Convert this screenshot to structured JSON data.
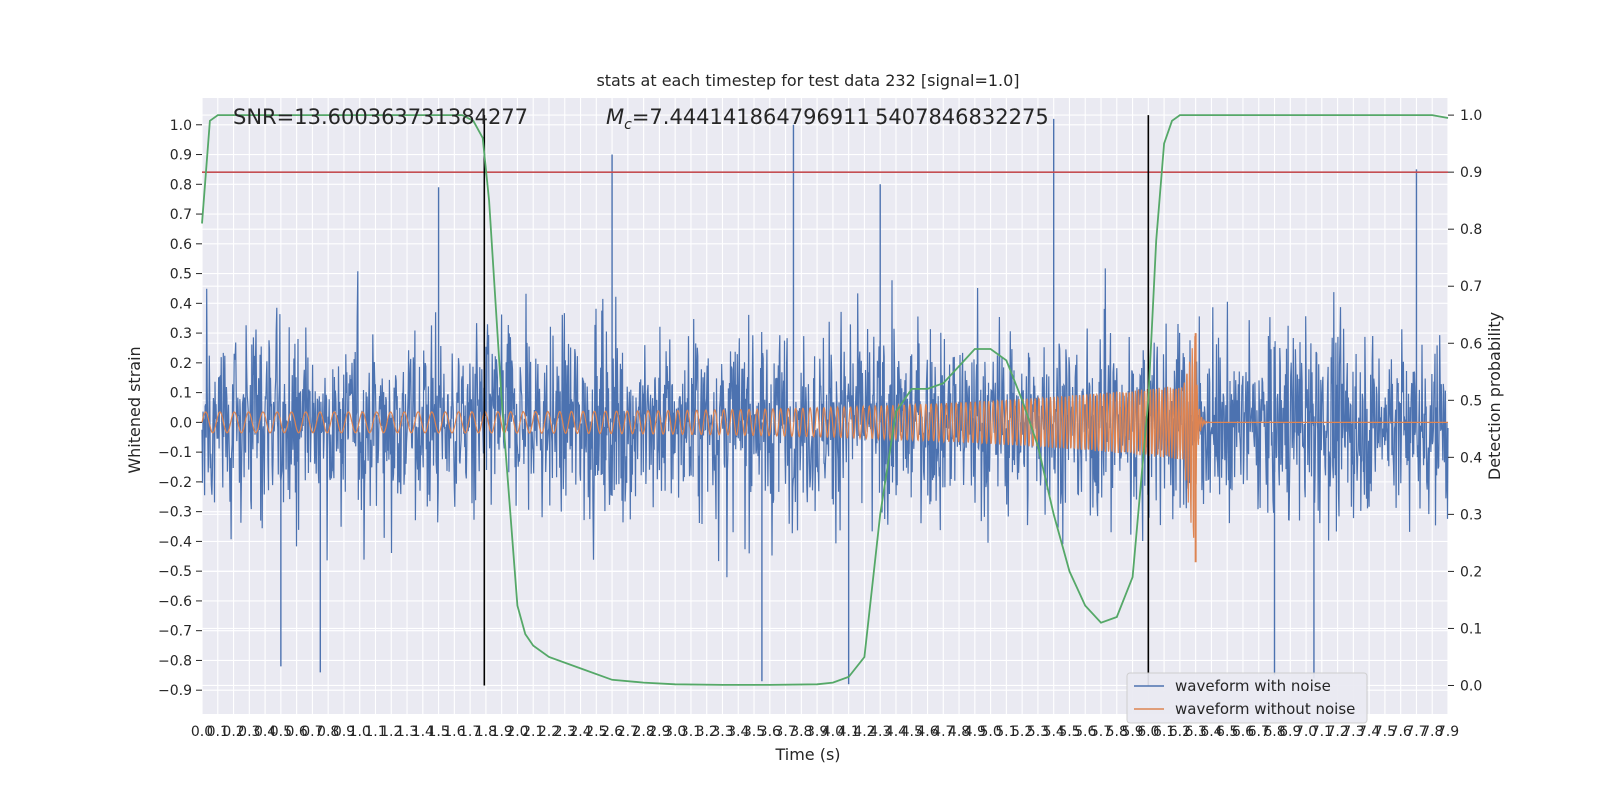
{
  "chart_data": {
    "type": "line",
    "title": "stats at each timestep for test data 232 [signal=1.0]",
    "xlabel": "Time (s)",
    "ylabel_left": "Whitened strain",
    "ylabel_right": "Detection probability",
    "xlim": [
      0.0,
      7.9
    ],
    "ylim_left": [
      -0.98,
      1.09
    ],
    "ylim_right": [
      -0.05,
      1.03
    ],
    "x_ticks": [
      "0.0",
      "0.1",
      "0.2",
      "0.3",
      "0.4",
      "0.5",
      "0.6",
      "0.7",
      "0.8",
      "0.9",
      "1.0",
      "1.1",
      "1.2",
      "1.3",
      "1.4",
      "1.5",
      "1.6",
      "1.7",
      "1.8",
      "1.9",
      "2.0",
      "2.1",
      "2.2",
      "2.3",
      "2.4",
      "2.5",
      "2.6",
      "2.7",
      "2.8",
      "2.9",
      "3.0",
      "3.1",
      "3.2",
      "3.3",
      "3.4",
      "3.5",
      "3.6",
      "3.7",
      "3.8",
      "3.9",
      "4.0",
      "4.1",
      "4.2",
      "4.3",
      "4.4",
      "4.5",
      "4.6",
      "4.7",
      "4.8",
      "4.9",
      "5.0",
      "5.1",
      "5.2",
      "5.3",
      "5.4",
      "5.5",
      "5.6",
      "5.7",
      "5.8",
      "5.9",
      "6.0",
      "6.1",
      "6.2",
      "6.3",
      "6.4",
      "6.5",
      "6.6",
      "6.7",
      "6.8",
      "6.9",
      "7.0",
      "7.1",
      "7.2",
      "7.3",
      "7.4",
      "7.5",
      "7.6",
      "7.7",
      "7.8",
      "7.9"
    ],
    "y_ticks_left": [
      "1.0",
      "0.9",
      "0.8",
      "0.7",
      "0.6",
      "0.5",
      "0.4",
      "0.3",
      "0.2",
      "0.1",
      "0.0",
      "−0.1",
      "−0.2",
      "−0.3",
      "−0.4",
      "−0.5",
      "−0.6",
      "−0.7",
      "−0.8",
      "−0.9"
    ],
    "y_ticks_right": [
      "1.0",
      "0.9",
      "0.8",
      "0.7",
      "0.6",
      "0.5",
      "0.4",
      "0.3",
      "0.2",
      "0.1",
      "0.0"
    ],
    "annotations": {
      "snr": "SNR=13.600363731384277",
      "mc_prefix": "M",
      "mc_sub": "c",
      "mc_value": "=7.444141864796911",
      "overlap": "5407846832275"
    },
    "threshold_right": 0.9,
    "vertical_markers": [
      1.79,
      6.0
    ],
    "series": [
      {
        "name": "waveform with noise",
        "color": "#4c72b0",
        "noise_band_left": [
          -0.45,
          0.45
        ],
        "peak_spikes": [
          {
            "x": 2.6,
            "y": 0.9
          },
          {
            "x": 3.75,
            "y": 1.0
          },
          {
            "x": 5.4,
            "y": 1.02
          },
          {
            "x": 7.7,
            "y": 0.85
          },
          {
            "x": 1.5,
            "y": 0.79
          },
          {
            "x": 4.3,
            "y": 0.8
          },
          {
            "x": 3.55,
            "y": -0.87
          },
          {
            "x": 4.1,
            "y": -0.88
          },
          {
            "x": 6.8,
            "y": -0.85
          },
          {
            "x": 7.05,
            "y": -0.86
          },
          {
            "x": 0.75,
            "y": -0.84
          },
          {
            "x": 0.5,
            "y": -0.82
          }
        ]
      },
      {
        "name": "waveform without noise",
        "color": "#dd8452",
        "chirp": {
          "start_amp": 0.035,
          "start_freq": 11,
          "end_freq": 60,
          "merger_time": 6.3,
          "merger_peak": 0.3,
          "merger_trough": -0.47
        }
      },
      {
        "name": "detection probability",
        "color": "#55a868",
        "axis": "right",
        "x": [
          0.0,
          0.05,
          0.1,
          0.2,
          0.5,
          1.0,
          1.5,
          1.65,
          1.72,
          1.78,
          1.82,
          1.9,
          2.0,
          2.05,
          2.1,
          2.2,
          2.4,
          2.6,
          2.8,
          3.0,
          3.3,
          3.6,
          3.9,
          4.0,
          4.1,
          4.2,
          4.3,
          4.4,
          4.5,
          4.6,
          4.7,
          4.8,
          4.9,
          5.0,
          5.1,
          5.2,
          5.3,
          5.4,
          5.5,
          5.6,
          5.7,
          5.8,
          5.9,
          6.0,
          6.05,
          6.1,
          6.15,
          6.2,
          6.3,
          6.5,
          7.0,
          7.5,
          7.8,
          7.9
        ],
        "y": [
          0.81,
          0.99,
          1.0,
          1.0,
          1.0,
          1.0,
          1.0,
          1.0,
          0.99,
          0.96,
          0.85,
          0.5,
          0.14,
          0.09,
          0.07,
          0.05,
          0.03,
          0.01,
          0.005,
          0.002,
          0.001,
          0.001,
          0.002,
          0.005,
          0.015,
          0.05,
          0.3,
          0.48,
          0.52,
          0.52,
          0.53,
          0.56,
          0.59,
          0.59,
          0.57,
          0.5,
          0.42,
          0.3,
          0.2,
          0.14,
          0.11,
          0.12,
          0.19,
          0.5,
          0.78,
          0.95,
          0.99,
          1.0,
          1.0,
          1.0,
          1.0,
          1.0,
          1.0,
          0.995
        ]
      }
    ],
    "legend": {
      "placement": "lower-right",
      "entries": [
        "waveform with noise",
        "waveform without noise"
      ]
    },
    "grid": true,
    "colors": {
      "background": "#eaeaf2",
      "grid": "#ffffff",
      "threshold": "#c44e52",
      "marker": "#000000"
    }
  }
}
